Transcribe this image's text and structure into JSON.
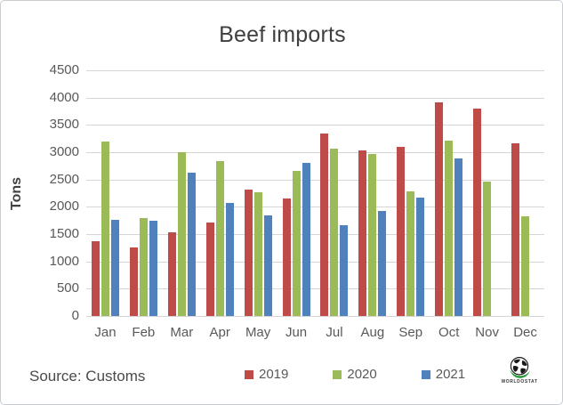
{
  "chart_data": {
    "type": "bar",
    "title": "Beef imports",
    "ylabel": "Tons",
    "xlabel": "",
    "ylim": [
      0,
      4500
    ],
    "ytick_step": 500,
    "grid": true,
    "legend_position": "bottom",
    "categories": [
      "Jan",
      "Feb",
      "Mar",
      "Apr",
      "May",
      "Jun",
      "Jul",
      "Aug",
      "Sep",
      "Oct",
      "Nov",
      "Dec"
    ],
    "series": [
      {
        "name": "2019",
        "color": "#BE4B48",
        "values": [
          1370,
          1250,
          1530,
          1710,
          2320,
          2150,
          3350,
          3040,
          3100,
          3920,
          3800,
          3160
        ]
      },
      {
        "name": "2020",
        "color": "#9BBB59",
        "values": [
          3200,
          1800,
          3000,
          2830,
          2270,
          2650,
          3070,
          2960,
          2290,
          3220,
          2460,
          1830
        ]
      },
      {
        "name": "2021",
        "color": "#4F81BD",
        "values": [
          1760,
          1740,
          2630,
          2070,
          1840,
          2810,
          1660,
          1930,
          2170,
          2880,
          null,
          null
        ]
      }
    ]
  },
  "footer": {
    "source_label": "Source: Customs"
  },
  "logo": {
    "wordmark": "WORLDOSTAT",
    "icon": "globe-icon",
    "swoosh_color": "#2F9E3F"
  },
  "colors": {
    "gridline": "#D6D6D6",
    "axis_text": "#595959",
    "title_text": "#3F3F3F",
    "border": "#C9CDD1",
    "background": "#FFFFFF"
  }
}
